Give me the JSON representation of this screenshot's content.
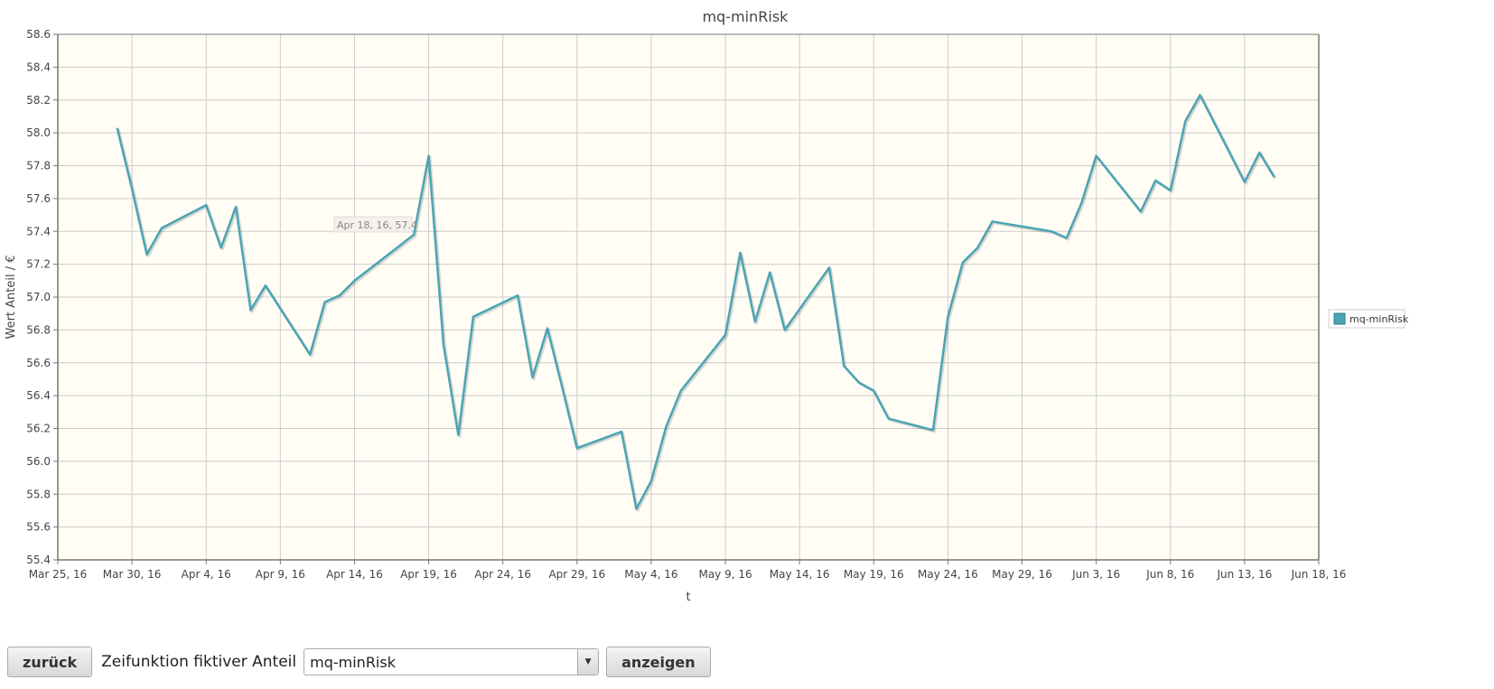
{
  "chart_data": {
    "type": "line",
    "title": "mq-minRisk",
    "xlabel": "t",
    "ylabel": "Wert Anteil / €",
    "xlim": [
      "2016-03-25",
      "2016-06-18"
    ],
    "ylim": [
      55.4,
      58.6
    ],
    "grid": true,
    "legend": {
      "position": "right",
      "entries": [
        "mq-minRisk"
      ]
    },
    "x_ticks": [
      "Mar 25, 16",
      "Mar 30, 16",
      "Apr 4, 16",
      "Apr 9, 16",
      "Apr 14, 16",
      "Apr 19, 16",
      "Apr 24, 16",
      "Apr 29, 16",
      "May 4, 16",
      "May 9, 16",
      "May 14, 16",
      "May 19, 16",
      "May 24, 16",
      "May 29, 16",
      "Jun 3, 16",
      "Jun 8, 16",
      "Jun 13, 16",
      "Jun 18, 16"
    ],
    "y_ticks": [
      "55.4",
      "55.6",
      "55.8",
      "56.0",
      "56.2",
      "56.4",
      "56.6",
      "56.8",
      "57.0",
      "57.2",
      "57.4",
      "57.6",
      "57.8",
      "58.0",
      "58.2",
      "58.4",
      "58.6"
    ],
    "series": [
      {
        "name": "mq-minRisk",
        "color": "#4aa4b4",
        "x": [
          "2016-03-29",
          "2016-03-30",
          "2016-03-31",
          "2016-04-01",
          "2016-04-04",
          "2016-04-05",
          "2016-04-06",
          "2016-04-07",
          "2016-04-08",
          "2016-04-11",
          "2016-04-12",
          "2016-04-13",
          "2016-04-14",
          "2016-04-15",
          "2016-04-18",
          "2016-04-19",
          "2016-04-20",
          "2016-04-21",
          "2016-04-22",
          "2016-04-25",
          "2016-04-26",
          "2016-04-27",
          "2016-04-28",
          "2016-04-29",
          "2016-05-02",
          "2016-05-03",
          "2016-05-04",
          "2016-05-05",
          "2016-05-06",
          "2016-05-09",
          "2016-05-10",
          "2016-05-11",
          "2016-05-12",
          "2016-05-13",
          "2016-05-16",
          "2016-05-17",
          "2016-05-18",
          "2016-05-19",
          "2016-05-20",
          "2016-05-23",
          "2016-05-24",
          "2016-05-25",
          "2016-05-26",
          "2016-05-27",
          "2016-05-31",
          "2016-06-01",
          "2016-06-02",
          "2016-06-03",
          "2016-06-06",
          "2016-06-07",
          "2016-06-08",
          "2016-06-09",
          "2016-06-10",
          "2016-06-13",
          "2016-06-14",
          "2016-06-15"
        ],
        "y": [
          58.03,
          57.66,
          57.26,
          57.42,
          57.56,
          57.3,
          57.55,
          56.92,
          57.07,
          56.65,
          56.97,
          57.01,
          57.1,
          57.17,
          57.38,
          57.86,
          56.71,
          56.16,
          56.88,
          57.01,
          56.51,
          56.81,
          56.45,
          56.08,
          56.18,
          55.71,
          55.88,
          56.21,
          56.43,
          56.77,
          57.27,
          56.85,
          57.15,
          56.8,
          57.18,
          56.58,
          56.48,
          56.43,
          56.26,
          56.19,
          56.88,
          57.21,
          57.3,
          57.46,
          57.4,
          57.36,
          57.57,
          57.86,
          57.52,
          57.71,
          57.65,
          58.07,
          58.23,
          57.7,
          57.88,
          57.73
        ]
      }
    ],
    "tooltip": "Apr 18, 16, 57.4"
  },
  "controls": {
    "back_label": "zurück",
    "function_label": "Zeifunktion fiktiver Anteil",
    "selected_value": "mq-minRisk",
    "show_label": "anzeigen"
  },
  "colors": {
    "plot_background": "#fffdf4",
    "grid": "#cccccc",
    "axis": "#777777",
    "series": "#4aa4b4"
  }
}
